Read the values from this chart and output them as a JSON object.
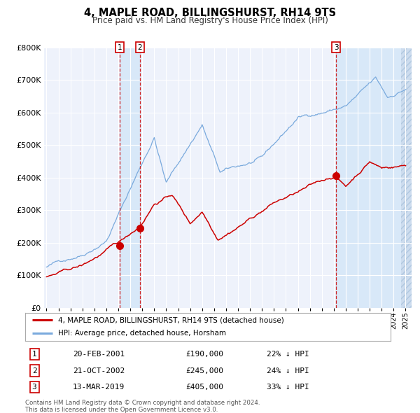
{
  "title": "4, MAPLE ROAD, BILLINGSHURST, RH14 9TS",
  "subtitle": "Price paid vs. HM Land Registry's House Price Index (HPI)",
  "legend_red": "4, MAPLE ROAD, BILLINGSHURST, RH14 9TS (detached house)",
  "legend_blue": "HPI: Average price, detached house, Horsham",
  "transactions": [
    {
      "num": 1,
      "date_label": "20-FEB-2001",
      "date_year": 2001.13,
      "price": 190000,
      "pct": "22% ↓ HPI"
    },
    {
      "num": 2,
      "date_label": "21-OCT-2002",
      "date_year": 2002.8,
      "price": 245000,
      "pct": "24% ↓ HPI"
    },
    {
      "num": 3,
      "date_label": "13-MAR-2019",
      "date_year": 2019.2,
      "price": 405000,
      "pct": "33% ↓ HPI"
    }
  ],
  "copyright": "Contains HM Land Registry data © Crown copyright and database right 2024.\nThis data is licensed under the Open Government Licence v3.0.",
  "background_color": "#eef2fb",
  "grid_color": "#ffffff",
  "red_line_color": "#cc0000",
  "blue_line_color": "#7aaadd",
  "marker_color": "#cc0000",
  "dashed_line_color": "#cc0000",
  "highlight_fill": "#d8e8f8",
  "hatch_fill": "#cddcee",
  "ylim": [
    0,
    800000
  ],
  "xlim_start": 1994.8,
  "xlim_end": 2025.5,
  "yticks": [
    0,
    100000,
    200000,
    300000,
    400000,
    500000,
    600000,
    700000,
    800000
  ],
  "ytick_labels": [
    "£0",
    "£100K",
    "£200K",
    "£300K",
    "£400K",
    "£500K",
    "£600K",
    "£700K",
    "£800K"
  ]
}
